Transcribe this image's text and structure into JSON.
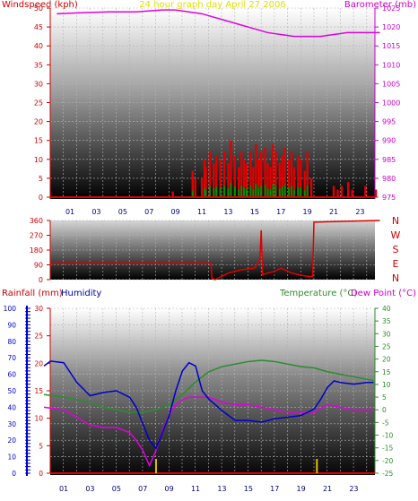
{
  "colors": {
    "wind": "#e00000",
    "gust": "#009000",
    "barometer": "#e000e0",
    "title": "#e0e000",
    "direction": "#e00000",
    "humidity": "#0000cc",
    "rain": "#e00000",
    "temperature": "#2e8b2e",
    "dew": "#e000e0"
  },
  "chart_data": [
    {
      "type": "line",
      "title": "24 hour graph day April 27 2006",
      "left_label": "Windspeed (kph)",
      "right_label": "Barometer (mb)",
      "x_ticks": [
        "01",
        "03",
        "05",
        "07",
        "09",
        "11",
        "13",
        "15",
        "17",
        "19",
        "21",
        "23"
      ],
      "y_left_ticks": [
        "0",
        "5",
        "10",
        "15",
        "20",
        "25",
        "30",
        "35",
        "40",
        "45",
        "50"
      ],
      "y_right_ticks": [
        "975",
        "980",
        "985",
        "990",
        "995",
        "1000",
        "1005",
        "1010",
        "1015",
        "1020",
        "1025"
      ],
      "barometer": {
        "x": [
          0,
          2,
          4,
          6,
          8,
          9,
          10,
          11,
          12,
          13,
          14,
          15,
          16,
          17,
          18,
          19,
          20,
          21,
          22,
          23,
          24.5
        ],
        "y": [
          1023.5,
          1023.8,
          1024,
          1024,
          1024.5,
          1024.5,
          1024,
          1023.5,
          1022.5,
          1021.5,
          1020.5,
          1019.5,
          1018.5,
          1018,
          1017.5,
          1017.5,
          1017.5,
          1018,
          1018.5,
          1018.5,
          1018.5
        ]
      },
      "wind_spikes": {
        "x": [
          8.8,
          10.3,
          10.5,
          11.0,
          11.2,
          11.3,
          11.6,
          11.9,
          12.1,
          12.4,
          12.7,
          13.0,
          13.2,
          13.5,
          13.8,
          14.0,
          14.2,
          14.4,
          14.7,
          14.9,
          15.1,
          15.3,
          15.5,
          15.8,
          16.0,
          16.2,
          16.4,
          16.6,
          16.9,
          17.1,
          17.3,
          17.6,
          17.8,
          18.0,
          18.3,
          18.5,
          18.8,
          19.0,
          19.3,
          21.0,
          21.3,
          21.6,
          22.1,
          22.4,
          23.4,
          24.2
        ],
        "y": [
          1.5,
          7,
          5,
          5,
          10,
          8,
          12,
          9,
          11,
          10,
          12,
          9,
          15,
          11,
          8,
          12,
          10,
          9,
          12,
          8,
          14,
          10,
          12,
          13,
          9,
          8,
          14,
          12,
          9,
          11,
          13,
          10,
          12,
          8,
          11,
          10,
          7,
          12,
          5,
          3,
          2,
          3,
          4,
          2,
          3,
          2
        ]
      }
    },
    {
      "type": "line",
      "title": "",
      "y_left_ticks": [
        "0",
        "90",
        "180",
        "270",
        "360"
      ],
      "right_labels": [
        "N",
        "W",
        "S",
        "E",
        "N"
      ],
      "direction": {
        "x": [
          -0.5,
          11.7,
          11.75,
          12.0,
          13.0,
          14.0,
          15.0,
          15.4,
          15.5,
          15.6,
          16.0,
          16.5,
          17.0,
          17.8,
          19.0,
          19.4,
          19.5,
          24.5
        ],
        "y": [
          100,
          100,
          10,
          0,
          40,
          60,
          70,
          120,
          300,
          30,
          40,
          50,
          70,
          40,
          20,
          20,
          350,
          360
        ]
      }
    },
    {
      "type": "line",
      "title": "",
      "labels": {
        "rainfall": "Rainfall (mm)",
        "humidity": "Humidity",
        "temperature": "Temperature (°C)",
        "dew": "Dew Point (°C)"
      },
      "x_ticks": [
        "01",
        "03",
        "05",
        "07",
        "09",
        "11",
        "13",
        "15",
        "17",
        "19",
        "21",
        "23"
      ],
      "humidity_ticks": [
        "0",
        "10",
        "20",
        "30",
        "40",
        "50",
        "60",
        "70",
        "80",
        "90",
        "100"
      ],
      "rain_ticks": [
        "0",
        "5",
        "10",
        "15",
        "20",
        "25",
        "30"
      ],
      "temp_ticks": [
        "-25",
        "-20",
        "-15",
        "-10",
        "-5",
        "0",
        "5",
        "10",
        "15",
        "20",
        "25",
        "30",
        "35",
        "40"
      ],
      "humidity": {
        "x": [
          -0.5,
          0,
          1,
          2,
          3,
          4,
          5,
          5.5,
          6,
          6.5,
          7,
          7.5,
          8,
          8.5,
          9,
          9.5,
          10,
          10.5,
          11,
          11.5,
          12,
          13,
          14,
          15,
          16,
          17,
          18,
          19,
          20,
          20.5,
          21,
          21.5,
          22,
          23,
          24,
          24.5
        ],
        "y": [
          65,
          68,
          67,
          55,
          47,
          49,
          50,
          48,
          46,
          40,
          30,
          20,
          15,
          25,
          35,
          50,
          62,
          67,
          65,
          50,
          45,
          38,
          32,
          32,
          31,
          33,
          34,
          35,
          39,
          45,
          52,
          56,
          55,
          54,
          55,
          55
        ]
      },
      "temperature": {
        "x": [
          -0.5,
          1,
          2,
          3,
          4,
          5,
          6,
          7,
          8,
          9,
          10,
          11,
          12,
          13,
          14,
          15,
          16,
          17,
          18,
          19,
          20,
          21,
          22,
          23,
          24.5
        ],
        "y": [
          6,
          5,
          4,
          3,
          1,
          0,
          -1,
          -1,
          0,
          2,
          6,
          11,
          15,
          17,
          18,
          19,
          19.5,
          19,
          18,
          17,
          16.5,
          15,
          14,
          13,
          11.5
        ]
      },
      "dew": {
        "x": [
          -0.5,
          1,
          2,
          3,
          4,
          5,
          6,
          6.5,
          7,
          7.5,
          8,
          8.5,
          9,
          9.5,
          10,
          10.5,
          11,
          12,
          13,
          14,
          15,
          16,
          17,
          18,
          19,
          20,
          21,
          22,
          23,
          24.5
        ],
        "y": [
          1,
          0,
          -3,
          -6,
          -7,
          -7,
          -9,
          -12,
          -16,
          -22,
          -16,
          -8,
          -2,
          2,
          4,
          5,
          5,
          5,
          3,
          2,
          2,
          1,
          0,
          -1,
          -1,
          -1,
          2,
          1,
          0,
          0
        ]
      },
      "rain_markers_x": [
        8.0,
        20.2
      ]
    }
  ]
}
